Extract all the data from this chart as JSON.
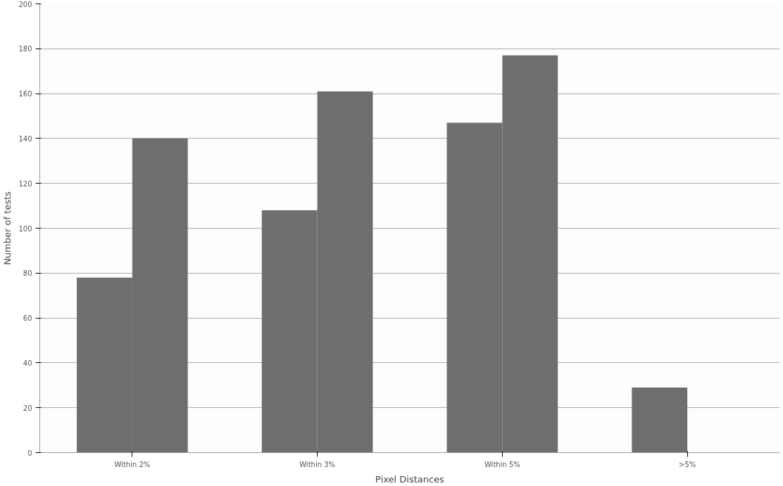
{
  "chart_data": {
    "type": "bar",
    "xlabel": "Pixel Distances",
    "ylabel": "Number of tests",
    "categories": [
      "Within 2%",
      "Within 3%",
      "Within 5%",
      ">5%"
    ],
    "series": [
      {
        "color": "#6e6e6e",
        "values": [
          78,
          108,
          147,
          29
        ]
      },
      {
        "color": "#6e6e6e",
        "values": [
          140,
          161,
          177,
          null
        ]
      }
    ],
    "ylim": [
      0,
      200
    ],
    "yticks": [
      0,
      20,
      40,
      60,
      80,
      100,
      120,
      140,
      160,
      180,
      200
    ],
    "grid": "y"
  }
}
